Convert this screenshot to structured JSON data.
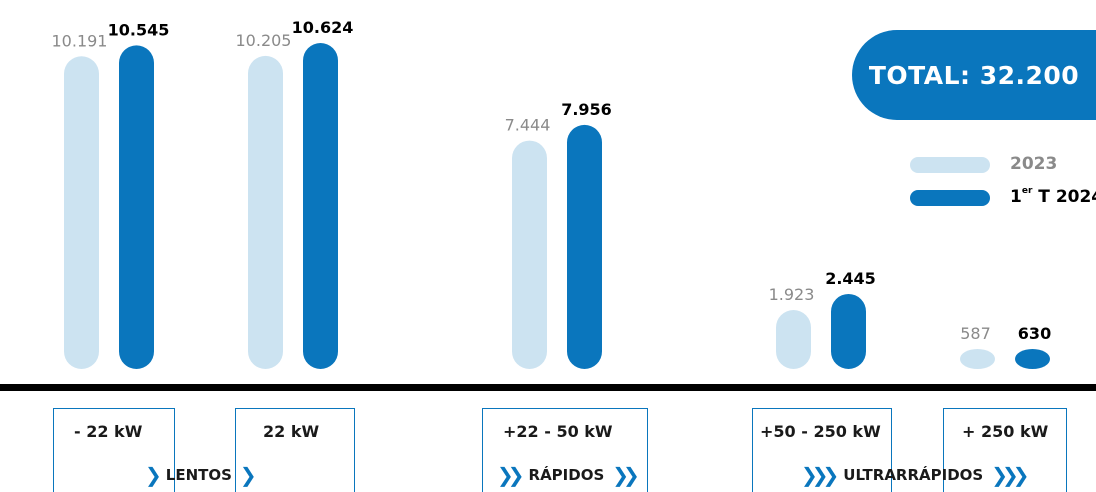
{
  "chart_data": {
    "type": "bar",
    "categories": [
      "- 22 kW",
      "22 kW",
      "+22 - 50 kW",
      "+50 - 250 kW",
      "+ 250 kW"
    ],
    "series": [
      {
        "name": "2023",
        "values": [
          10191,
          10205,
          7444,
          1923,
          587
        ],
        "labels": [
          "10.191",
          "10.205",
          "7.444",
          "1.923",
          "587"
        ],
        "color": "#cce3f1"
      },
      {
        "name": "1er T 2024",
        "values": [
          10545,
          10624,
          7956,
          2445,
          630
        ],
        "labels": [
          "10.545",
          "10.624",
          "7.956",
          "2.445",
          "630"
        ],
        "color": "#0a76bd"
      }
    ],
    "groups": [
      {
        "label": "LENTOS",
        "categories": [
          "- 22 kW",
          "22 kW"
        ]
      },
      {
        "label": "RÁPIDOS",
        "categories": [
          "+22 - 50 kW"
        ]
      },
      {
        "label": "ULTRARRÁPIDOS",
        "categories": [
          "+50 - 250 kW",
          "+ 250 kW"
        ]
      }
    ],
    "total_label": "TOTAL: 32.200",
    "legend": {
      "items": [
        {
          "text": "2023",
          "color": "#cce3f1"
        },
        {
          "text_main": "1",
          "text_sup": "er",
          "text_rest": " T 2024",
          "color": "#0a76bd"
        }
      ],
      "position": "right"
    },
    "value_label_colors": {
      "2023": "#8a8a8a",
      "2024": "#000000"
    },
    "grid": false
  }
}
